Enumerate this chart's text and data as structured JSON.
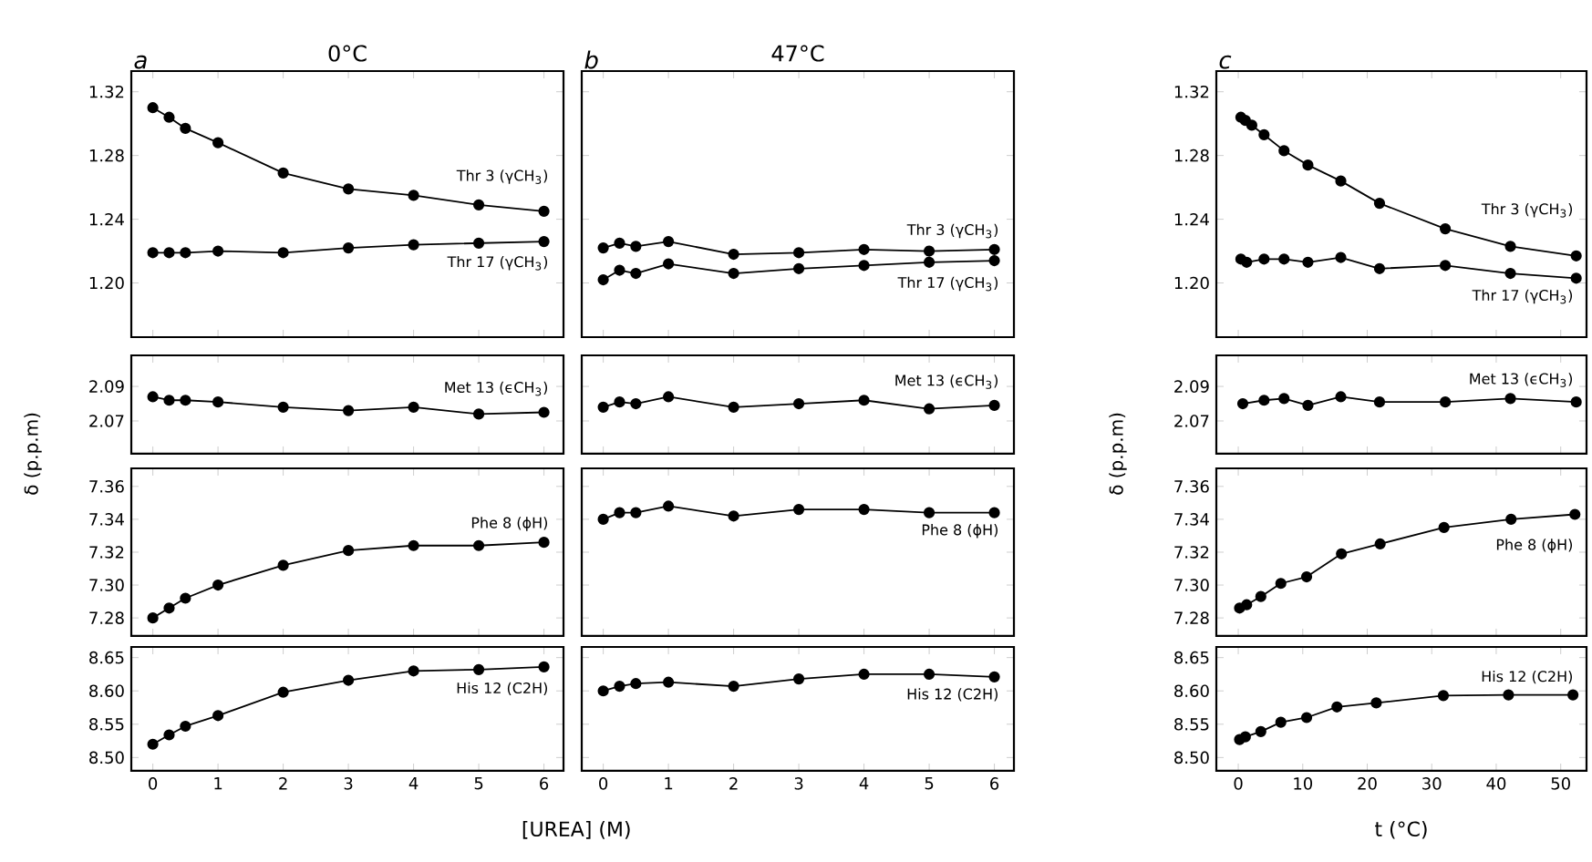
{
  "chart_data": [
    {
      "type": "line",
      "title": "a",
      "subtitle": "0°C",
      "marker": "circle",
      "line_style": "solid",
      "tick_labels": "y",
      "x": [
        0,
        0.25,
        0.5,
        1,
        2,
        3,
        4,
        5,
        6
      ],
      "xlim": [
        -0.33,
        6.3
      ],
      "xticks": [
        0,
        1,
        2,
        3,
        4,
        5,
        6
      ],
      "ylim": [
        1.166,
        1.333
      ],
      "yticks": [
        1.32,
        1.28,
        1.24,
        {
          "value": 1.2,
          "label": "1.20"
        }
      ],
      "series": [
        {
          "name": "Thr 3 (γCH$_{3}$)",
          "color": "#000000",
          "values": [
            1.31,
            1.304,
            1.297,
            1.288,
            1.269,
            1.259,
            1.255,
            1.249,
            1.245
          ]
        },
        {
          "name": "Thr 17 (γCH$_{3}$)",
          "color": "#000000",
          "values": [
            1.219,
            1.219,
            1.219,
            1.22,
            1.219,
            1.222,
            1.224,
            1.225,
            1.226
          ]
        }
      ]
    },
    {
      "type": "line",
      "title": "b",
      "subtitle": "47°C",
      "marker": "circle",
      "line_style": "solid",
      "tick_labels": false,
      "x": [
        0,
        0.25,
        0.5,
        1,
        2,
        3,
        4,
        5,
        6
      ],
      "xlim": [
        -0.33,
        6.3
      ],
      "xticks": [
        0,
        1,
        2,
        3,
        4,
        5,
        6
      ],
      "ylim": [
        1.166,
        1.333
      ],
      "yticks": [
        1.32,
        1.28,
        1.24,
        {
          "value": 1.2,
          "label": null
        }
      ],
      "series": [
        {
          "name": "Thr 3 (γCH$_{3}$)",
          "color": "#000000",
          "values": [
            1.222,
            1.225,
            1.223,
            1.226,
            1.218,
            1.219,
            1.221,
            1.22,
            1.221
          ]
        },
        {
          "name": "Thr 17 (γCH$_{3}$)",
          "color": "#000000",
          "values": [
            1.202,
            1.208,
            1.206,
            1.212,
            1.206,
            1.209,
            1.211,
            1.213,
            1.214
          ]
        }
      ]
    },
    {
      "type": "line",
      "title": "c",
      "marker": "circle",
      "line_style": "solid",
      "tick_labels": "y",
      "xlim": [
        -3.4,
        54
      ],
      "xticks": [
        0,
        10,
        20,
        30,
        40,
        50
      ],
      "ylim": [
        1.166,
        1.333
      ],
      "yticks": [
        1.32,
        1.28,
        1.24,
        {
          "value": 1.2,
          "label": "1.20"
        }
      ],
      "series": [
        {
          "name": "Thr 3 (γCH$_{3}$)",
          "color": "#000000",
          "x": [
            0.4,
            1.1,
            2.1,
            4.0,
            7.1,
            10.8,
            15.9,
            21.9,
            32.1,
            42.2,
            52.4
          ],
          "values": [
            1.304,
            1.302,
            1.299,
            1.293,
            1.283,
            1.274,
            1.264,
            1.25,
            1.234,
            1.223,
            1.217
          ]
        },
        {
          "name": "Thr 17 (γCH$_{3}$)",
          "color": "#000000",
          "x": [
            0.4,
            1.3,
            4.0,
            7.1,
            10.8,
            15.9,
            21.9,
            32.1,
            42.2,
            52.4
          ],
          "values": [
            1.215,
            1.213,
            1.215,
            1.215,
            1.213,
            1.216,
            1.209,
            1.211,
            1.206,
            1.203
          ]
        }
      ]
    },
    {
      "type": "line",
      "ylabel": "δ (p.p.m)",
      "marker": "circle",
      "line_style": "solid",
      "tick_labels": "y",
      "x": [
        0,
        0.25,
        0.5,
        1,
        2,
        3,
        4,
        5,
        6
      ],
      "xlim": [
        -0.33,
        6.3
      ],
      "xticks": [
        0,
        1,
        2,
        3,
        4,
        5,
        6
      ],
      "ylim": [
        2.051,
        2.108
      ],
      "yticks": [
        2.07,
        2.09
      ],
      "series": [
        {
          "name": "Met 13 (ϵCH$_{3}$)",
          "color": "#000000",
          "values": [
            2.084,
            2.082,
            2.082,
            2.081,
            2.078,
            2.076,
            2.078,
            2.074,
            2.075
          ]
        }
      ]
    },
    {
      "type": "line",
      "marker": "circle",
      "line_style": "solid",
      "tick_labels": false,
      "x": [
        0,
        0.25,
        0.5,
        1,
        2,
        3,
        4,
        5,
        6
      ],
      "xlim": [
        -0.33,
        6.3
      ],
      "xticks": [
        0,
        1,
        2,
        3,
        4,
        5,
        6
      ],
      "ylim": [
        2.051,
        2.108
      ],
      "yticks": [
        2.07,
        2.09
      ],
      "series": [
        {
          "name": "Met 13 (ϵCH$_{3}$)",
          "color": "#000000",
          "values": [
            2.078,
            2.081,
            2.08,
            2.084,
            2.078,
            2.08,
            2.082,
            2.077,
            2.079
          ]
        }
      ]
    },
    {
      "type": "line",
      "ylabel": "δ (p.p.m)",
      "marker": "circle",
      "line_style": "solid",
      "tick_labels": "y",
      "xlim": [
        -3.4,
        54
      ],
      "xticks": [
        0,
        10,
        20,
        30,
        40,
        50
      ],
      "ylim": [
        2.051,
        2.108
      ],
      "yticks": [
        2.07,
        2.09
      ],
      "series": [
        {
          "name": "Met 13 (ϵCH$_{3}$)",
          "color": "#000000",
          "x": [
            0.7,
            4.0,
            7.1,
            10.8,
            15.9,
            21.9,
            32.1,
            42.2,
            52.4
          ],
          "values": [
            2.08,
            2.082,
            2.083,
            2.079,
            2.084,
            2.081,
            2.081,
            2.083,
            2.081
          ]
        }
      ]
    },
    {
      "type": "line",
      "marker": "circle",
      "line_style": "solid",
      "tick_labels": "y",
      "x": [
        0,
        0.25,
        0.5,
        1,
        2,
        3,
        4,
        5,
        6
      ],
      "xlim": [
        -0.33,
        6.3
      ],
      "xticks": [
        0,
        1,
        2,
        3,
        4,
        5,
        6
      ],
      "ylim": [
        7.269,
        7.371
      ],
      "yticks": [
        7.28,
        {
          "value": 7.3,
          "label": "7.30"
        },
        7.32,
        7.34,
        7.36
      ],
      "series": [
        {
          "name": "Phe 8 (ϕH)",
          "color": "#000000",
          "values": [
            7.28,
            7.286,
            7.292,
            7.3,
            7.312,
            7.321,
            7.324,
            7.324,
            7.326
          ]
        }
      ]
    },
    {
      "type": "line",
      "marker": "circle",
      "line_style": "solid",
      "tick_labels": false,
      "x": [
        0,
        0.25,
        0.5,
        1,
        2,
        3,
        4,
        5,
        6
      ],
      "xlim": [
        -0.33,
        6.3
      ],
      "xticks": [
        0,
        1,
        2,
        3,
        4,
        5,
        6
      ],
      "ylim": [
        7.269,
        7.371
      ],
      "yticks": [
        7.28,
        {
          "value": 7.3,
          "label": null
        },
        7.32,
        7.34,
        7.36
      ],
      "series": [
        {
          "name": "Phe 8 (ϕH)",
          "color": "#000000",
          "values": [
            7.34,
            7.344,
            7.344,
            7.348,
            7.342,
            7.346,
            7.346,
            7.344,
            7.344
          ]
        }
      ]
    },
    {
      "type": "line",
      "marker": "circle",
      "line_style": "solid",
      "tick_labels": "y",
      "xlim": [
        -3.4,
        54
      ],
      "xticks": [
        0,
        10,
        20,
        30,
        40,
        50
      ],
      "ylim": [
        7.269,
        7.371
      ],
      "yticks": [
        7.28,
        {
          "value": 7.3,
          "label": "7.30"
        },
        7.32,
        7.34,
        7.36
      ],
      "series": [
        {
          "name": "Phe 8 (ϕH)",
          "color": "#000000",
          "x": [
            0.2,
            1.3,
            3.5,
            6.6,
            10.6,
            16.0,
            22.0,
            31.9,
            42.3,
            52.2
          ],
          "values": [
            7.286,
            7.288,
            7.293,
            7.301,
            7.305,
            7.319,
            7.325,
            7.335,
            7.34,
            7.343
          ]
        }
      ]
    },
    {
      "type": "line",
      "xlabel": "[UREA]   (M)",
      "marker": "circle",
      "line_style": "solid",
      "x": [
        0,
        0.25,
        0.5,
        1,
        2,
        3,
        4,
        5,
        6
      ],
      "xlim": [
        -0.33,
        6.3
      ],
      "xticks": [
        0,
        1,
        2,
        3,
        4,
        5,
        6
      ],
      "ylim": [
        8.48,
        8.666
      ],
      "yticks": [
        {
          "value": 8.5,
          "label": "8.50"
        },
        8.55,
        {
          "value": 8.6,
          "label": "8.60"
        },
        8.65
      ],
      "series": [
        {
          "name": "His 12 (C2H)",
          "color": "#000000",
          "values": [
            8.52,
            8.534,
            8.547,
            8.563,
            8.598,
            8.616,
            8.63,
            8.632,
            8.636
          ]
        }
      ]
    },
    {
      "type": "line",
      "marker": "circle",
      "line_style": "solid",
      "tick_labels": "x",
      "x": [
        0,
        0.25,
        0.5,
        1,
        2,
        3,
        4,
        5,
        6
      ],
      "xlim": [
        -0.33,
        6.3
      ],
      "xticks": [
        0,
        1,
        2,
        3,
        4,
        5,
        6
      ],
      "ylim": [
        8.48,
        8.666
      ],
      "yticks": [
        {
          "value": 8.5,
          "label": null
        },
        8.55,
        {
          "value": 8.6,
          "label": null
        },
        8.65
      ],
      "series": [
        {
          "name": "His 12 (C2H)",
          "color": "#000000",
          "values": [
            8.6,
            8.607,
            8.611,
            8.613,
            8.607,
            8.618,
            8.625,
            8.625,
            8.621
          ]
        }
      ]
    },
    {
      "type": "line",
      "xlabel": "t (°C)",
      "marker": "circle",
      "line_style": "solid",
      "xlim": [
        -3.4,
        54
      ],
      "xticks": [
        0,
        10,
        20,
        30,
        40,
        50
      ],
      "ylim": [
        8.48,
        8.666
      ],
      "yticks": [
        {
          "value": 8.5,
          "label": "8.50"
        },
        8.55,
        {
          "value": 8.6,
          "label": "8.60"
        },
        8.65
      ],
      "series": [
        {
          "name": "His 12 (C2H)",
          "color": "#000000",
          "x": [
            0.2,
            1.1,
            3.5,
            6.6,
            10.6,
            15.3,
            21.4,
            31.8,
            41.9,
            51.9
          ],
          "values": [
            8.527,
            8.531,
            8.539,
            8.553,
            8.56,
            8.576,
            8.582,
            8.593,
            8.594,
            8.594
          ]
        }
      ]
    }
  ]
}
